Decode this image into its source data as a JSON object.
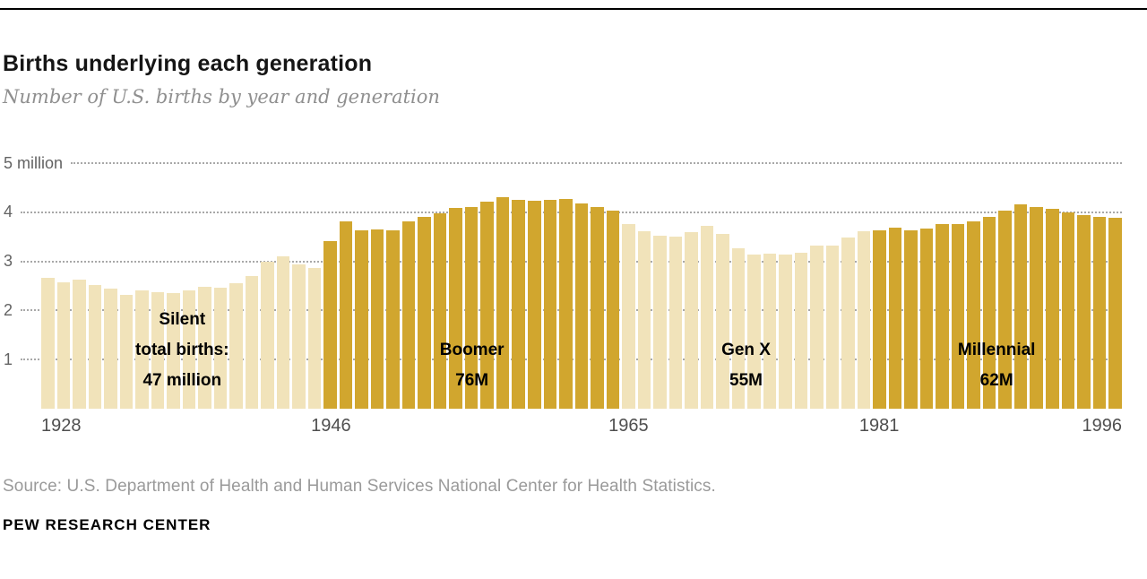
{
  "header": {
    "title": "Births underlying each generation",
    "subtitle": "Number of U.S. births by year and generation"
  },
  "chart_data": {
    "type": "bar",
    "title": "Births underlying each generation",
    "subtitle": "Number of U.S. births by year and generation",
    "xlabel": "",
    "ylabel": "",
    "unit": "millions of births",
    "ylim": [
      0,
      5
    ],
    "grid": "horizontal dotted",
    "grid_color": "#a8a8a8",
    "legend_position": "none",
    "yticks": [
      5,
      4,
      3,
      2,
      1
    ],
    "ytick_labels": [
      "5 million",
      "4",
      "3",
      "2",
      "1"
    ],
    "xticks": [
      1928,
      1946,
      1965,
      1981,
      1996
    ],
    "years": [
      1928,
      1929,
      1930,
      1931,
      1932,
      1933,
      1934,
      1935,
      1936,
      1937,
      1938,
      1939,
      1940,
      1941,
      1942,
      1943,
      1944,
      1945,
      1946,
      1947,
      1948,
      1949,
      1950,
      1951,
      1952,
      1953,
      1954,
      1955,
      1956,
      1957,
      1958,
      1959,
      1960,
      1961,
      1962,
      1963,
      1964,
      1965,
      1966,
      1967,
      1968,
      1969,
      1970,
      1971,
      1972,
      1973,
      1974,
      1975,
      1976,
      1977,
      1978,
      1979,
      1980,
      1981,
      1982,
      1983,
      1984,
      1985,
      1986,
      1987,
      1988,
      1989,
      1990,
      1991,
      1992,
      1993,
      1994,
      1995,
      1996
    ],
    "values": [
      2.67,
      2.58,
      2.62,
      2.51,
      2.44,
      2.31,
      2.4,
      2.38,
      2.36,
      2.41,
      2.49,
      2.47,
      2.56,
      2.7,
      2.99,
      3.1,
      2.94,
      2.86,
      3.41,
      3.82,
      3.64,
      3.65,
      3.63,
      3.82,
      3.91,
      3.97,
      4.08,
      4.1,
      4.22,
      4.3,
      4.26,
      4.24,
      4.26,
      4.27,
      4.17,
      4.1,
      4.03,
      3.76,
      3.61,
      3.52,
      3.5,
      3.6,
      3.73,
      3.56,
      3.26,
      3.14,
      3.16,
      3.14,
      3.17,
      3.33,
      3.33,
      3.49,
      3.61,
      3.63,
      3.68,
      3.64,
      3.67,
      3.76,
      3.76,
      3.81,
      3.91,
      4.04,
      4.16,
      4.11,
      4.07,
      4.0,
      3.95,
      3.9,
      3.89
    ],
    "generations": [
      {
        "name": "Silent",
        "start": 1928,
        "end": 1945,
        "color": "#f1e3ba",
        "label_lines": [
          "Silent",
          "total births:",
          "47 million"
        ]
      },
      {
        "name": "Boomer",
        "start": 1946,
        "end": 1964,
        "color": "#d1a62e",
        "label_lines": [
          "Boomer",
          "76M"
        ]
      },
      {
        "name": "Gen X",
        "start": 1965,
        "end": 1980,
        "color": "#f1e3ba",
        "label_lines": [
          "Gen X",
          "55M"
        ]
      },
      {
        "name": "Millennial",
        "start": 1981,
        "end": 1996,
        "color": "#d1a62e",
        "label_lines": [
          "Millennial",
          "62M"
        ]
      }
    ]
  },
  "footer": {
    "source": "Source: U.S. Department of Health and Human Services National Center for Health Statistics.",
    "brand": "PEW RESEARCH CENTER"
  }
}
